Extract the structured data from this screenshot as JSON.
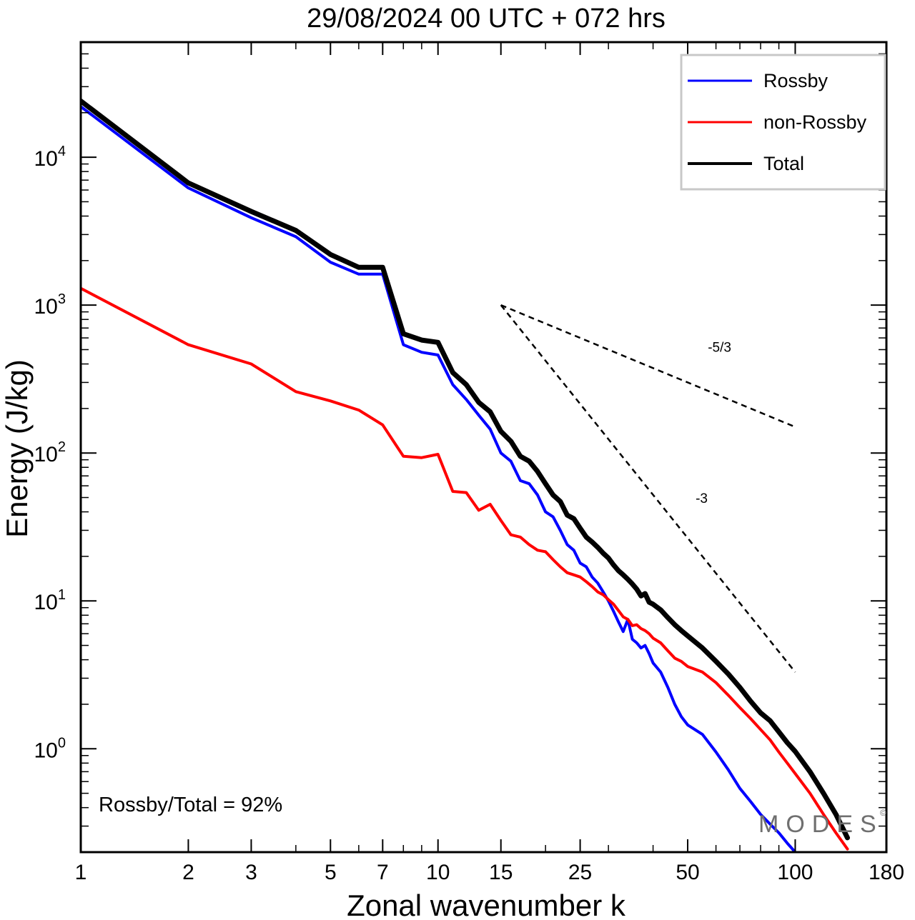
{
  "chart_data": {
    "type": "line",
    "title": "29/08/2024  00 UTC  + 072 hrs",
    "xlabel": "Zonal wavenumber k",
    "ylabel": "Energy (J/kg)",
    "xscale": "log",
    "yscale": "log",
    "xlim": [
      1,
      180
    ],
    "ylim": [
      0.2,
      60000
    ],
    "x_ticks": [
      1,
      2,
      3,
      5,
      7,
      10,
      15,
      25,
      50,
      100,
      180
    ],
    "y_ticks": [
      1,
      10,
      100,
      1000,
      10000
    ],
    "grid": false,
    "legend": "top-right",
    "series": [
      {
        "name": "Rossby",
        "color": "#0000ff",
        "x": [
          1,
          2,
          3,
          4,
          5,
          6,
          7,
          8,
          9,
          10,
          11,
          12,
          13,
          14,
          15,
          16,
          17,
          18,
          19,
          20,
          21,
          22,
          23,
          24,
          25,
          26,
          27,
          28,
          29,
          30,
          31,
          32,
          33,
          34,
          35,
          36,
          37,
          38,
          39,
          40,
          42,
          44,
          46,
          48,
          50,
          55,
          60,
          65,
          70,
          75,
          80,
          85,
          90,
          95,
          100
        ],
        "values": [
          22000,
          6200,
          3900,
          2900,
          1950,
          1620,
          1620,
          540,
          480,
          460,
          290,
          230,
          180,
          145,
          100,
          88,
          65,
          62,
          52,
          40,
          37,
          30,
          24,
          22,
          18,
          17,
          14.5,
          13.2,
          11.5,
          10.0,
          8.5,
          7.2,
          6.2,
          7.5,
          5.5,
          5.2,
          4.8,
          5.0,
          4.4,
          3.8,
          3.3,
          2.6,
          2.0,
          1.65,
          1.45,
          1.25,
          0.95,
          0.72,
          0.54,
          0.44,
          0.36,
          0.31,
          0.27,
          0.23,
          0.2
        ]
      },
      {
        "name": "non-Rossby",
        "color": "#ff0000",
        "x": [
          1,
          2,
          3,
          4,
          5,
          6,
          7,
          8,
          9,
          10,
          11,
          12,
          13,
          14,
          15,
          16,
          17,
          18,
          19,
          20,
          21,
          22,
          23,
          24,
          25,
          26,
          27,
          28,
          29,
          30,
          31,
          32,
          33,
          34,
          35,
          36,
          37,
          38,
          39,
          40,
          42,
          44,
          46,
          48,
          50,
          55,
          60,
          65,
          70,
          75,
          80,
          85,
          90,
          95,
          100,
          110,
          120,
          130,
          140
        ],
        "values": [
          1300,
          540,
          400,
          260,
          225,
          195,
          155,
          95,
          93,
          98,
          55,
          54,
          41,
          45,
          35,
          28,
          27,
          24,
          22,
          21.5,
          19,
          17,
          15.5,
          15,
          14.5,
          13.5,
          12.5,
          11.5,
          11,
          10.2,
          9.5,
          8.6,
          7.8,
          7.5,
          6.8,
          6.9,
          6.5,
          6.3,
          6.0,
          5.6,
          5.2,
          4.6,
          4.1,
          3.9,
          3.6,
          3.3,
          2.8,
          2.3,
          1.9,
          1.6,
          1.35,
          1.15,
          0.95,
          0.8,
          0.68,
          0.5,
          0.36,
          0.27,
          0.21
        ]
      },
      {
        "name": "Total",
        "color": "#000000",
        "x": [
          1,
          2,
          3,
          4,
          5,
          6,
          7,
          8,
          9,
          10,
          11,
          12,
          13,
          14,
          15,
          16,
          17,
          18,
          19,
          20,
          21,
          22,
          23,
          24,
          25,
          26,
          27,
          28,
          29,
          30,
          31,
          32,
          33,
          34,
          35,
          36,
          37,
          38,
          39,
          40,
          42,
          44,
          46,
          48,
          50,
          55,
          60,
          65,
          70,
          75,
          80,
          85,
          90,
          95,
          100,
          110,
          120,
          130,
          140
        ],
        "values": [
          24000,
          6700,
          4300,
          3200,
          2200,
          1800,
          1800,
          640,
          580,
          560,
          350,
          290,
          220,
          190,
          140,
          120,
          95,
          88,
          75,
          62,
          52,
          47,
          38,
          36,
          31,
          27,
          25,
          23,
          21,
          19.5,
          17.5,
          16,
          15,
          14,
          13,
          12,
          10.8,
          11.2,
          9.8,
          9.5,
          8.7,
          7.7,
          6.9,
          6.3,
          5.8,
          4.8,
          3.9,
          3.2,
          2.6,
          2.1,
          1.75,
          1.55,
          1.3,
          1.1,
          0.96,
          0.7,
          0.5,
          0.36,
          0.25
        ]
      }
    ],
    "reference_lines": [
      {
        "label": "-5/3",
        "slope": -1.6667,
        "x": [
          15,
          100
        ],
        "values": [
          1000,
          150
        ]
      },
      {
        "label": "-3",
        "slope": -3,
        "x": [
          15,
          100
        ],
        "values": [
          1000,
          3.3
        ]
      }
    ],
    "annotations": {
      "ratio_text": "Rossby/Total = 92%",
      "watermark": "MODES",
      "watermark_symbol": "©"
    }
  }
}
